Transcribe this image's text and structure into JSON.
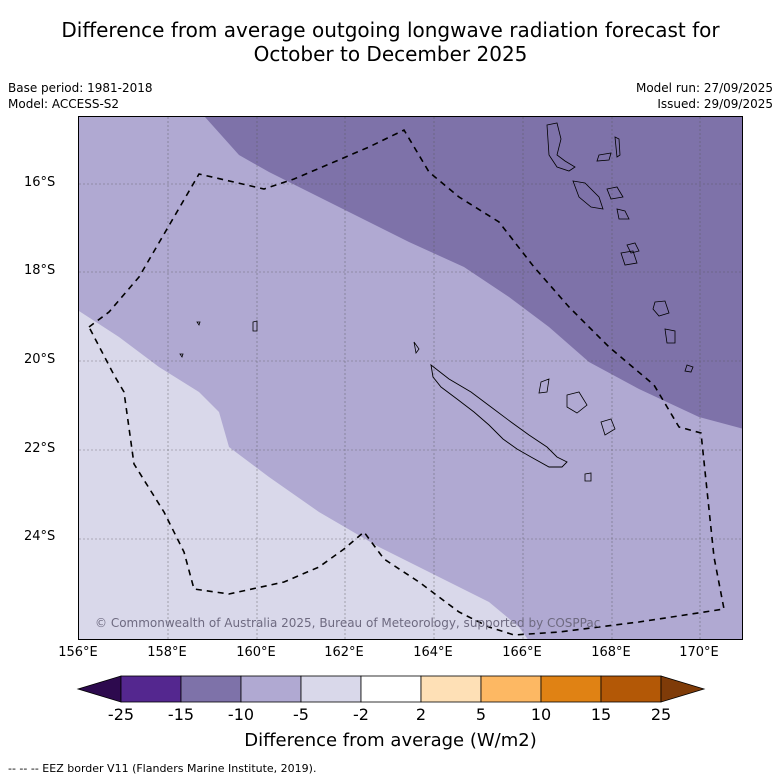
{
  "title_line1": "Difference from average outgoing longwave radiation forecast for",
  "title_line2": "October to December 2025",
  "base_period": "Base period: 1981-2018",
  "model": "Model: ACCESS-S2",
  "model_run": "Model run: 27/09/2025",
  "issued": "Issued: 29/09/2025",
  "copyright": "© Commonwealth of Australia 2025, Bureau of Meteorology, supported by COSPPac",
  "lat_labels": [
    "16°S",
    "18°S",
    "20°S",
    "22°S",
    "24°S"
  ],
  "lon_labels": [
    "156°E",
    "158°E",
    "160°E",
    "162°E",
    "164°E",
    "166°E",
    "168°E",
    "170°E"
  ],
  "colorbar": {
    "ticks": [
      "-25",
      "-15",
      "-10",
      "-5",
      "-2",
      "2",
      "5",
      "10",
      "15",
      "25"
    ],
    "colors": [
      "#2d0a4e",
      "#54278f",
      "#7e72a9",
      "#b0a9d2",
      "#d9d8ea",
      "#ffffff",
      "#fee0b6",
      "#fdb863",
      "#e08214",
      "#b35806",
      "#7f3b08"
    ],
    "label": "Difference from average (W/m2)"
  },
  "footnote": "--  --  -- EEZ border V11 (Flanders Marine Institute, 2019)."
}
